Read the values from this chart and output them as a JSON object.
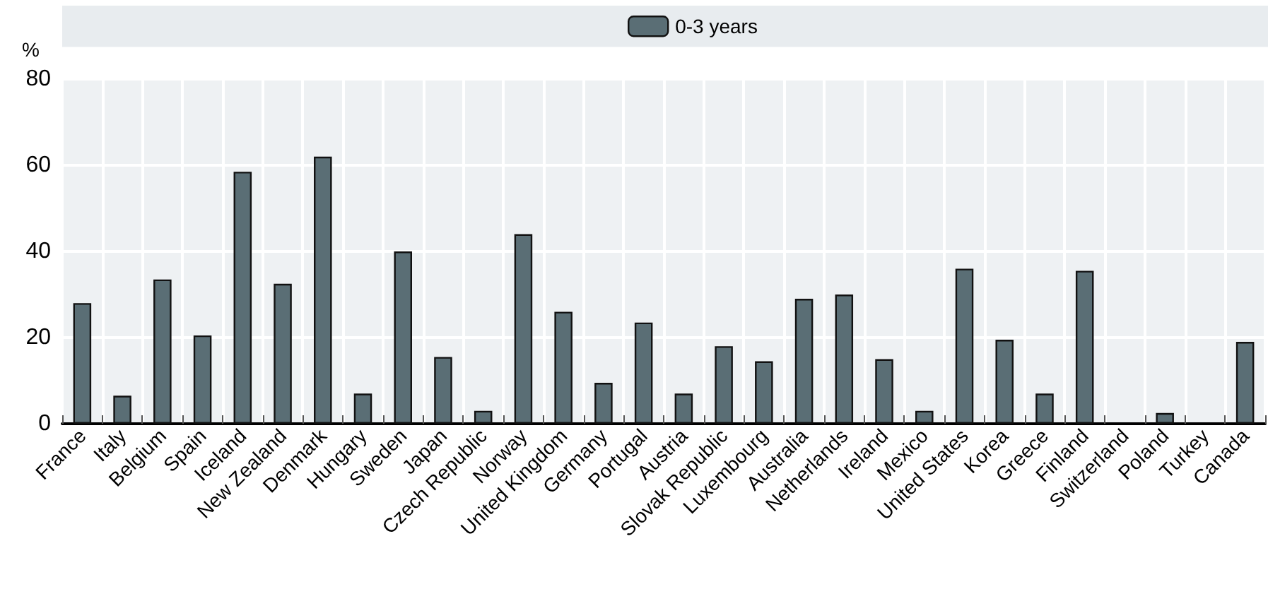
{
  "chart_data": {
    "type": "bar",
    "ylabel": "%",
    "categories": [
      "France",
      "Italy",
      "Belgium",
      "Spain",
      "Iceland",
      "New Zealand",
      "Denmark",
      "Hungary",
      "Sweden",
      "Japan",
      "Czech Republic",
      "Norway",
      "United Kingdom",
      "Germany",
      "Portugal",
      "Austria",
      "Slovak Republic",
      "Luxembourg",
      "Australia",
      "Netherlands",
      "Ireland",
      "Mexico",
      "United States",
      "Korea",
      "Greece",
      "Finland",
      "Switzerland",
      "Poland",
      "Turkey",
      "Canada"
    ],
    "series": [
      {
        "name": "0-3 years",
        "color": "#5a6e75",
        "values": [
          28,
          6.5,
          33.5,
          20.5,
          58.5,
          32.5,
          62,
          7,
          40,
          15.5,
          3,
          44,
          26,
          9.5,
          23.5,
          7,
          18,
          14.5,
          29,
          30,
          15,
          3,
          36,
          19.5,
          7,
          35.5,
          null,
          2.5,
          null,
          19
        ]
      }
    ],
    "ylim": [
      0,
      80
    ],
    "yticks": [
      0,
      20,
      40,
      60,
      80
    ],
    "grid": true,
    "legend": "top"
  }
}
